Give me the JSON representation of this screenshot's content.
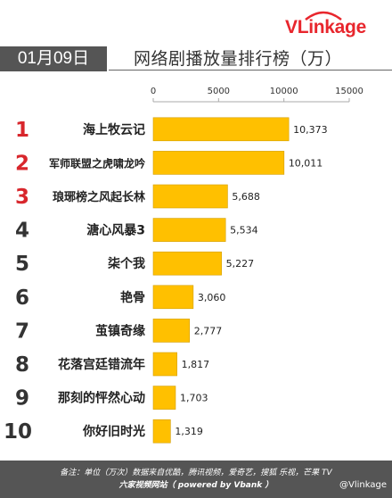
{
  "logo": {
    "brand_text": "VLinkage"
  },
  "header": {
    "date": "01月09日",
    "title": "网络剧播放量排行榜（万）"
  },
  "chart_data": {
    "type": "bar",
    "orientation": "horizontal",
    "title": "网络剧播放量排行榜（万）",
    "unit": "万",
    "xlim": [
      0,
      15000
    ],
    "x_ticks": [
      "0",
      "5000",
      "10000",
      "15000"
    ],
    "grid": false,
    "bar_color": "#ffc000",
    "rank_color": "#d8262c",
    "rank_dark_color": "#333333",
    "ranks": [
      "1",
      "2",
      "3",
      "4",
      "5",
      "6",
      "7",
      "8",
      "9",
      "10"
    ],
    "categories": [
      "海上牧云记",
      "军师联盟之虎啸龙吟",
      "琅琊榜之风起长林",
      "溏心风暴3",
      "柒个我",
      "艳骨",
      "茧镇奇缘",
      "花落宫廷错流年",
      "那刻的怦然心动",
      "你好旧时光"
    ],
    "values": [
      10373,
      10011,
      5688,
      5534,
      5227,
      3060,
      2777,
      1817,
      1703,
      1319
    ],
    "value_labels": [
      "10,373",
      "10,011",
      "5,688",
      "5,534",
      "5,227",
      "3,060",
      "2,777",
      "1,817",
      "1,703",
      "1,319"
    ]
  },
  "footer": {
    "note_line1": "备注：单位（万次）数据来自优酷，腾讯视频，爱奇艺，搜狐 乐视，芒果 TV",
    "note_line2": "六家视频网站（ powered by Vbank ）",
    "watermark": "@Vlinkage"
  }
}
